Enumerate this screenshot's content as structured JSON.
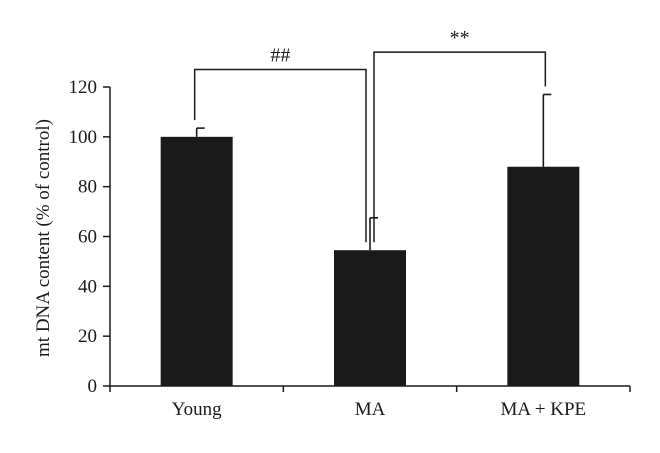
{
  "chart_data": {
    "type": "bar",
    "categories": [
      "Young",
      "MA",
      "MA + KPE"
    ],
    "values": [
      100,
      54.5,
      88
    ],
    "error_upper": [
      3.5,
      13,
      29
    ],
    "ylabel": "mt DNA content (% of control)",
    "xlabel": "",
    "ylim": [
      0,
      120
    ],
    "yticks": [
      0,
      20,
      40,
      60,
      80,
      100,
      120
    ],
    "grid": false,
    "bar_color": "#1a1a1a",
    "significance": [
      {
        "from": 0,
        "to": 1,
        "label": "##",
        "level": 127
      },
      {
        "from": 1,
        "to": 2,
        "label": "**",
        "level": 134
      }
    ]
  }
}
